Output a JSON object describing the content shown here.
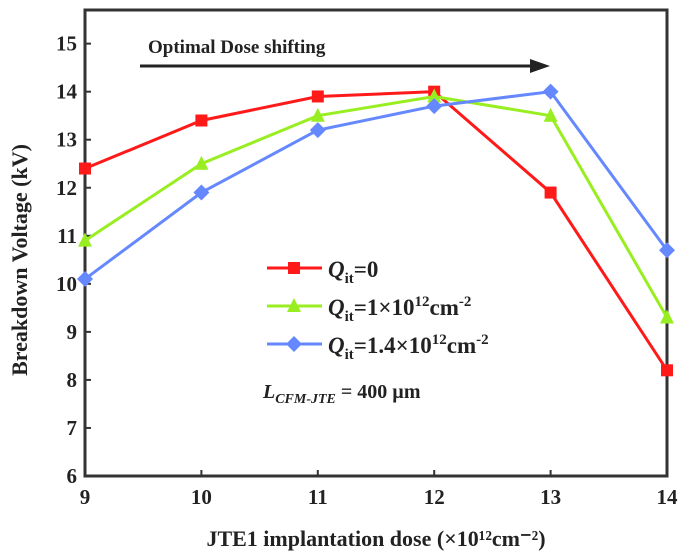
{
  "chart_data": {
    "type": "line",
    "xlabel": "JTE1  implantation dose (×10¹²cm⁻²)",
    "ylabel": "Breakdown Voltage (kV)",
    "xlim": [
      9,
      14
    ],
    "ylim": [
      6,
      15.7
    ],
    "xticks": [
      9,
      10,
      11,
      12,
      13,
      14
    ],
    "yticks": [
      6,
      7,
      8,
      9,
      10,
      11,
      12,
      13,
      14,
      15
    ],
    "grid": false,
    "legend_placement": "center",
    "annotation": "Optimal Dose shifting",
    "note": {
      "main": "L",
      "sub": "CFM-JTE",
      "rest": " = 400 µm"
    },
    "series": [
      {
        "name": "Qit=0",
        "label": {
          "q": "Q",
          "sub": "it",
          "rest": "=0",
          "sup": "",
          "tail": ""
        },
        "color": "#ff1a1a",
        "marker": "square",
        "x": [
          9,
          10,
          11,
          12,
          13,
          14
        ],
        "y": [
          12.4,
          13.4,
          13.9,
          14.0,
          11.9,
          8.2
        ]
      },
      {
        "name": "Qit=1×10^12cm^-2",
        "label": {
          "q": "Q",
          "sub": "it",
          "rest": "=1×10",
          "sup": "12",
          "tail": "cm",
          "sup2": "-2"
        },
        "color": "#99ee22",
        "marker": "triangle",
        "x": [
          9,
          10,
          11,
          12,
          13,
          14
        ],
        "y": [
          10.9,
          12.5,
          13.5,
          13.9,
          13.5,
          9.3
        ]
      },
      {
        "name": "Qit=1.4×10^12cm^-2",
        "label": {
          "q": "Q",
          "sub": "it",
          "rest": "=1.4×10",
          "sup": "12",
          "tail": "cm",
          "sup2": "-2"
        },
        "color": "#6688ff",
        "marker": "diamond",
        "x": [
          9,
          10,
          11,
          12,
          13,
          14
        ],
        "y": [
          10.1,
          11.9,
          13.2,
          13.7,
          14.0,
          10.7
        ]
      }
    ]
  }
}
